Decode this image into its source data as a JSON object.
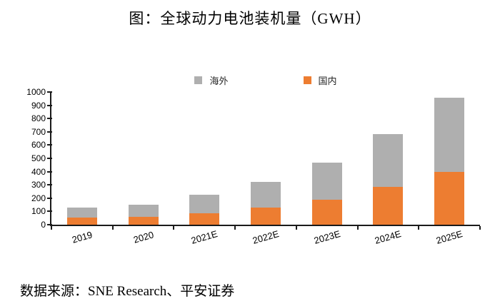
{
  "title": "图：全球动力电池装机量（GWH）",
  "source_note": "数据来源：SNE Research、平安证券",
  "legend": {
    "overseas_label": "海外",
    "domestic_label": "国内"
  },
  "colors": {
    "overseas": "#AFAFAF",
    "domestic": "#ED7D31",
    "axis": "#1A1A1A"
  },
  "chart_data": {
    "type": "bar",
    "stacked": true,
    "title": "图：全球动力电池装机量（GWH）",
    "xlabel": "",
    "ylabel": "",
    "unit": "GWH",
    "categories": [
      "2019",
      "2020",
      "2021E",
      "2022E",
      "2023E",
      "2024E",
      "2025E"
    ],
    "series": [
      {
        "name": "国内",
        "color": "#ED7D31",
        "stack_order": "bottom",
        "values": [
          55,
          60,
          85,
          130,
          190,
          285,
          400
        ]
      },
      {
        "name": "海外",
        "color": "#AFAFAF",
        "stack_order": "top",
        "values": [
          75,
          88,
          140,
          195,
          280,
          400,
          555
        ]
      }
    ],
    "totals": [
      130,
      148,
      225,
      325,
      470,
      685,
      955
    ],
    "ylim": [
      0,
      1000
    ],
    "yticks": [
      0,
      100,
      200,
      300,
      400,
      500,
      600,
      700,
      800,
      900,
      1000
    ],
    "grid": false,
    "legend_position": "top-center",
    "x_tick_label_rotation_deg": -16
  }
}
